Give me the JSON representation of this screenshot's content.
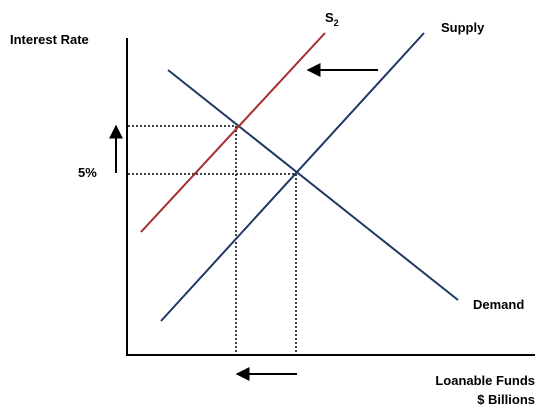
{
  "chart_data": {
    "type": "line",
    "title": "",
    "ylabel": "Interest Rate",
    "xlabel_line1": "Loanable Funds",
    "xlabel_line2": "$ Billions",
    "rate_tick_label": "5%",
    "series": [
      {
        "name": "Supply",
        "color": "#1f3864"
      },
      {
        "name": "Demand",
        "color": "#1f3864"
      },
      {
        "name_main": "S",
        "name_sub": "2",
        "color": "#a52a2a"
      }
    ],
    "annotations": {
      "supply_shift": "left",
      "rate_change": "up",
      "quantity_change": "down"
    },
    "grid": false,
    "axis_color": "#000000"
  }
}
